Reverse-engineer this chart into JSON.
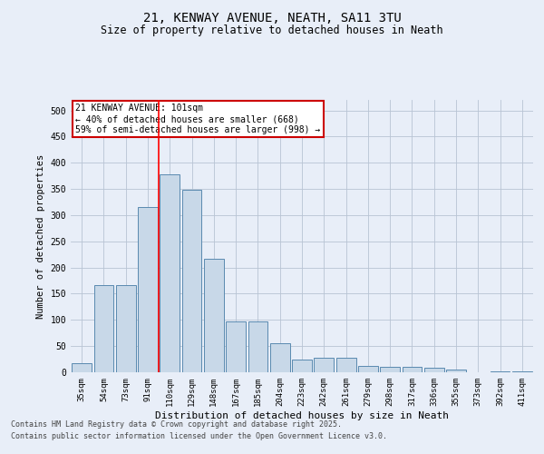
{
  "title1": "21, KENWAY AVENUE, NEATH, SA11 3TU",
  "title2": "Size of property relative to detached houses in Neath",
  "xlabel": "Distribution of detached houses by size in Neath",
  "ylabel": "Number of detached properties",
  "categories": [
    "35sqm",
    "54sqm",
    "73sqm",
    "91sqm",
    "110sqm",
    "129sqm",
    "148sqm",
    "167sqm",
    "185sqm",
    "204sqm",
    "223sqm",
    "242sqm",
    "261sqm",
    "279sqm",
    "298sqm",
    "317sqm",
    "336sqm",
    "355sqm",
    "373sqm",
    "392sqm",
    "411sqm"
  ],
  "values": [
    17,
    167,
    167,
    315,
    378,
    348,
    217,
    97,
    97,
    55,
    25,
    28,
    28,
    13,
    10,
    10,
    8,
    5,
    0,
    2,
    2
  ],
  "bar_color": "#c8d8e8",
  "bar_edge_color": "#5a8ab0",
  "grid_color": "#b8c4d4",
  "background_color": "#e8eef8",
  "red_line_index": 4,
  "annotation_text": "21 KENWAY AVENUE: 101sqm\n← 40% of detached houses are smaller (668)\n59% of semi-detached houses are larger (998) →",
  "annotation_box_color": "#ffffff",
  "annotation_box_edge": "#cc0000",
  "footer1": "Contains HM Land Registry data © Crown copyright and database right 2025.",
  "footer2": "Contains public sector information licensed under the Open Government Licence v3.0.",
  "ylim": [
    0,
    520
  ],
  "yticks": [
    0,
    50,
    100,
    150,
    200,
    250,
    300,
    350,
    400,
    450,
    500
  ]
}
